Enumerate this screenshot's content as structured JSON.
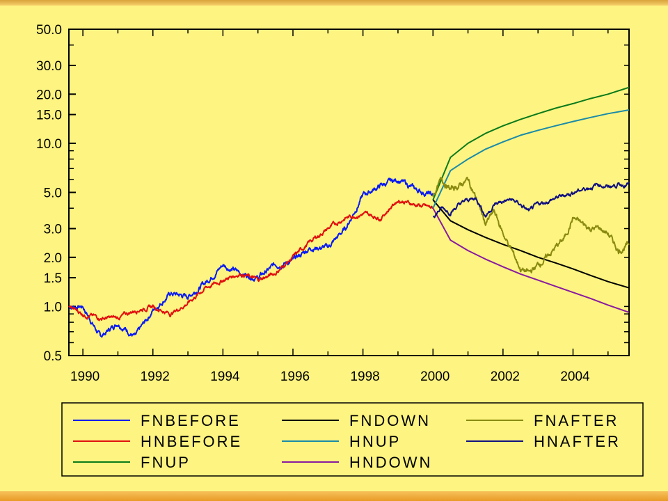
{
  "chart_data": {
    "type": "line",
    "title": "",
    "xlabel": "",
    "ylabel": "",
    "xlim": [
      1989.6,
      2005.6
    ],
    "ylim": [
      0.5,
      50
    ],
    "yscale": "log",
    "x_ticks": [
      "1990",
      "1992",
      "1994",
      "1996",
      "1998",
      "2000",
      "2002",
      "2004"
    ],
    "y_ticks": [
      "50.0",
      "30.0",
      "20.0",
      "15.0",
      "10.0",
      "5.0",
      "3.0",
      "2.0",
      "1.5",
      "1.0",
      "0.5"
    ],
    "grid": false,
    "legend_position": "bottom",
    "colors": {
      "background": "#fdf481",
      "FNBEFORE": "#0a1cf0",
      "HNBEFORE": "#e01010",
      "FNUP": "#0a7a1a",
      "FNDOWN": "#000000",
      "HNUP": "#1a8aa8",
      "HNDOWN": "#8a1aa0",
      "FNAFTER": "#8a8a10",
      "HNAFTER": "#101080"
    },
    "series": [
      {
        "name": "FNBEFORE",
        "x": [
          1989.6,
          1990,
          1990.5,
          1991,
          1991.5,
          1992,
          1992.5,
          1993,
          1993.5,
          1994,
          1994.5,
          1995,
          1995.5,
          1996,
          1996.5,
          1997,
          1997.5,
          1998,
          1998.5,
          1999,
          1999.5,
          2000
        ],
        "y": [
          1.0,
          1.0,
          0.65,
          0.8,
          0.65,
          0.95,
          1.2,
          1.15,
          1.4,
          1.8,
          1.6,
          1.5,
          1.8,
          1.9,
          2.3,
          2.3,
          3.0,
          4.8,
          5.5,
          6.0,
          5.2,
          4.8
        ]
      },
      {
        "name": "HNBEFORE",
        "x": [
          1989.6,
          1990,
          1990.5,
          1991,
          1991.5,
          1992,
          1992.5,
          1993,
          1993.5,
          1994,
          1994.5,
          1995,
          1995.5,
          1996,
          1996.5,
          1997,
          1997.5,
          1998,
          1998.5,
          1999,
          1999.5,
          2000
        ],
        "y": [
          1.0,
          0.9,
          0.85,
          0.85,
          0.95,
          1.0,
          0.9,
          1.05,
          1.3,
          1.45,
          1.6,
          1.45,
          1.6,
          2.0,
          2.5,
          3.0,
          3.5,
          3.7,
          3.5,
          4.5,
          4.2,
          4.0
        ]
      },
      {
        "name": "FNUP",
        "x": [
          2000,
          2000.5,
          2001,
          2001.5,
          2002,
          2002.5,
          2003,
          2003.5,
          2004,
          2004.5,
          2005,
          2005.6
        ],
        "y": [
          4.5,
          8.2,
          10.0,
          11.5,
          12.8,
          14.0,
          15.2,
          16.4,
          17.5,
          18.8,
          20.0,
          22.0
        ]
      },
      {
        "name": "FNDOWN",
        "x": [
          2000,
          2000.5,
          2001,
          2001.5,
          2002,
          2002.5,
          2003,
          2003.5,
          2004,
          2004.5,
          2005,
          2005.6
        ],
        "y": [
          4.5,
          3.35,
          2.95,
          2.65,
          2.4,
          2.2,
          2.0,
          1.85,
          1.7,
          1.55,
          1.42,
          1.3
        ]
      },
      {
        "name": "HNUP",
        "x": [
          2000,
          2000.5,
          2001,
          2001.5,
          2002,
          2002.5,
          2003,
          2003.5,
          2004,
          2004.5,
          2005,
          2005.6
        ],
        "y": [
          4.0,
          6.8,
          8.0,
          9.2,
          10.2,
          11.2,
          12.0,
          12.8,
          13.6,
          14.4,
          15.2,
          16.0
        ]
      },
      {
        "name": "HNDOWN",
        "x": [
          2000,
          2000.5,
          2001,
          2001.5,
          2002,
          2002.5,
          2003,
          2003.5,
          2004,
          2004.5,
          2005,
          2005.6
        ],
        "y": [
          4.0,
          2.55,
          2.2,
          1.95,
          1.75,
          1.58,
          1.45,
          1.33,
          1.22,
          1.12,
          1.02,
          0.92
        ]
      },
      {
        "name": "FNAFTER",
        "x": [
          2000,
          2000.25,
          2000.5,
          2000.75,
          2001,
          2001.25,
          2001.5,
          2001.75,
          2002,
          2002.25,
          2002.5,
          2002.75,
          2003,
          2003.25,
          2003.5,
          2003.75,
          2004,
          2004.25,
          2004.5,
          2004.75,
          2005,
          2005.3,
          2005.6
        ],
        "y": [
          4.8,
          6.0,
          5.2,
          5.5,
          6.0,
          4.5,
          3.2,
          3.8,
          2.8,
          2.2,
          1.7,
          1.6,
          1.8,
          2.0,
          2.3,
          2.6,
          3.5,
          3.2,
          3.0,
          3.0,
          2.8,
          2.2,
          2.4
        ]
      },
      {
        "name": "HNAFTER",
        "x": [
          2000,
          2000.25,
          2000.5,
          2000.75,
          2001,
          2001.25,
          2001.5,
          2001.75,
          2002,
          2002.25,
          2002.5,
          2002.75,
          2003,
          2003.25,
          2003.5,
          2003.75,
          2004,
          2004.25,
          2004.5,
          2004.75,
          2005,
          2005.3,
          2005.6
        ],
        "y": [
          3.6,
          4.0,
          3.8,
          4.2,
          4.5,
          4.6,
          3.6,
          4.2,
          4.4,
          4.5,
          4.2,
          3.8,
          4.2,
          4.4,
          4.6,
          4.8,
          5.0,
          5.2,
          5.4,
          5.6,
          5.4,
          5.6,
          5.6
        ]
      }
    ]
  },
  "legend_rows": [
    [
      "FNBEFORE",
      "FNDOWN",
      "FNAFTER"
    ],
    [
      "HNBEFORE",
      "HNUP",
      "HNAFTER"
    ],
    [
      "FNUP",
      "HNDOWN",
      ""
    ]
  ]
}
